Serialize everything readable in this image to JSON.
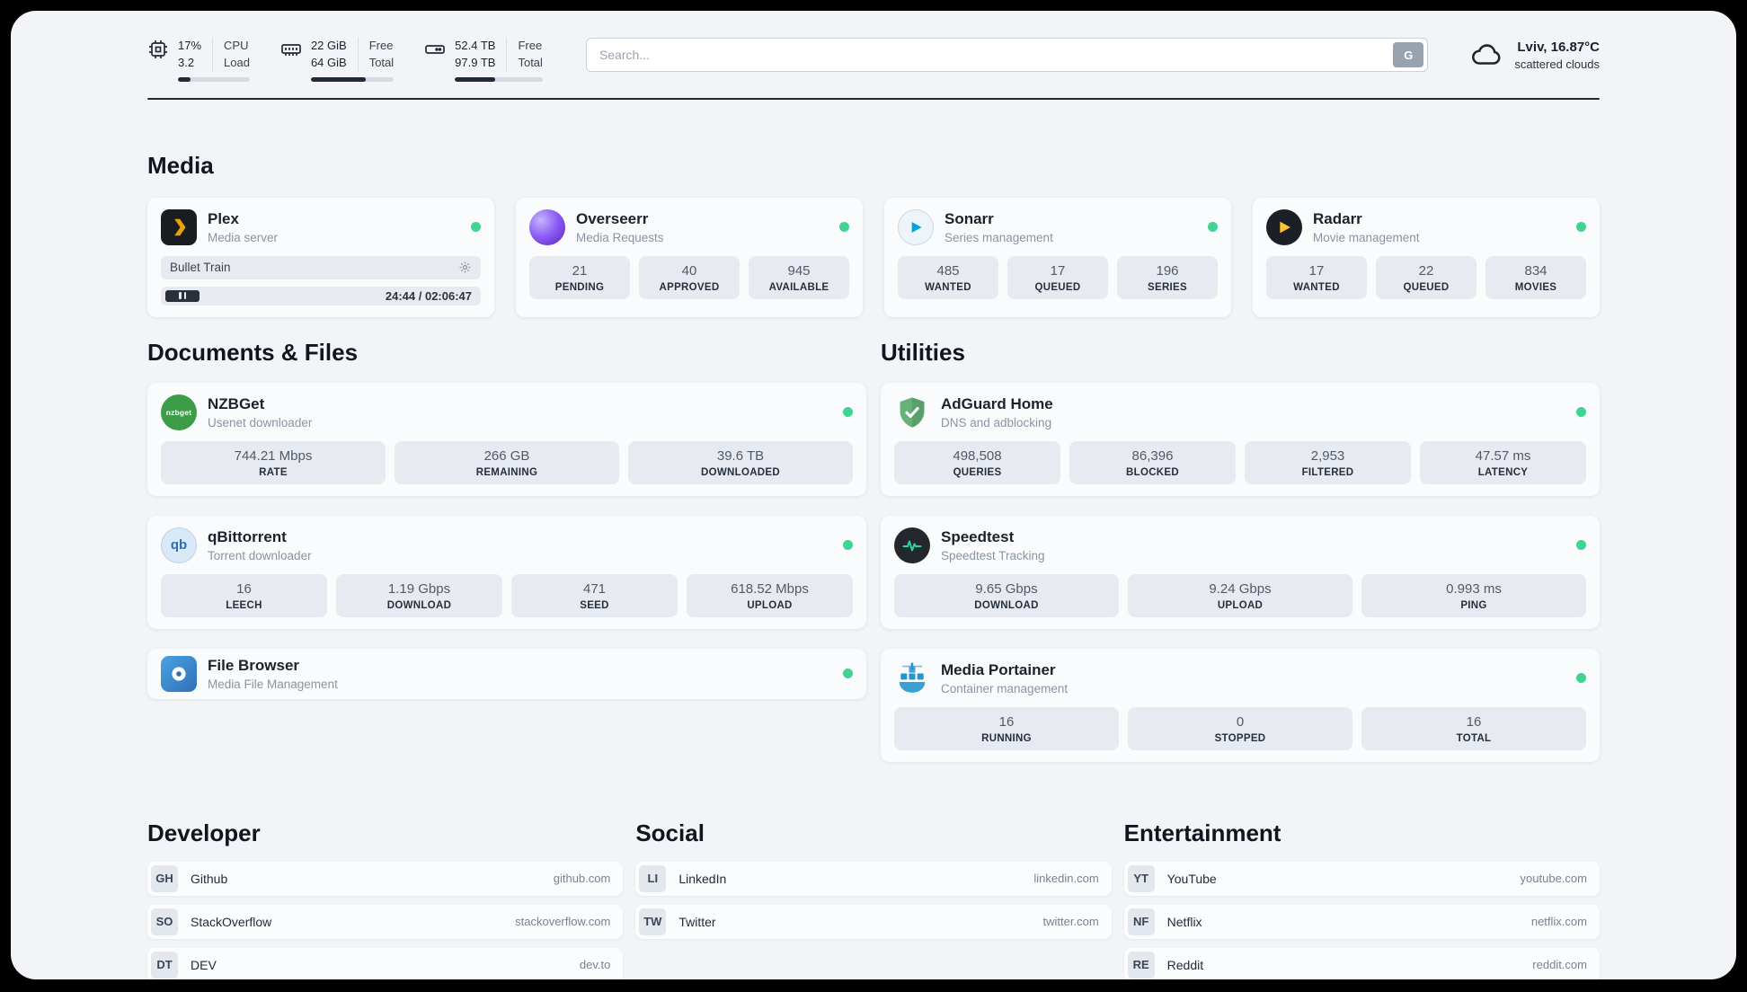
{
  "topbar": {
    "cpu": {
      "value_top": "17%",
      "value_bottom": "3.2",
      "label_top": "CPU",
      "label_bottom": "Load",
      "bar": 17
    },
    "ram": {
      "value_top": "22 GiB",
      "value_bottom": "64 GiB",
      "label_top": "Free",
      "label_bottom": "Total",
      "bar": 66
    },
    "disk": {
      "value_top": "52.4 TB",
      "value_bottom": "97.9 TB",
      "label_top": "Free",
      "label_bottom": "Total",
      "bar": 46
    },
    "search": {
      "placeholder": "Search...",
      "button": "G"
    },
    "weather": {
      "title": "Lviv, 16.87°C",
      "subtitle": "scattered clouds"
    }
  },
  "sections": {
    "media": "Media",
    "documents": "Documents & Files",
    "utilities": "Utilities",
    "developer": "Developer",
    "social": "Social",
    "entertainment": "Entertainment"
  },
  "apps": {
    "plex": {
      "name": "Plex",
      "subtitle": "Media server",
      "now_playing": "Bullet Train",
      "time": "24:44 / 02:06:47"
    },
    "overseerr": {
      "name": "Overseerr",
      "subtitle": "Media Requests",
      "stats": [
        {
          "value": "21",
          "label": "PENDING"
        },
        {
          "value": "40",
          "label": "APPROVED"
        },
        {
          "value": "945",
          "label": "AVAILABLE"
        }
      ]
    },
    "sonarr": {
      "name": "Sonarr",
      "subtitle": "Series management",
      "stats": [
        {
          "value": "485",
          "label": "WANTED"
        },
        {
          "value": "17",
          "label": "QUEUED"
        },
        {
          "value": "196",
          "label": "SERIES"
        }
      ]
    },
    "radarr": {
      "name": "Radarr",
      "subtitle": "Movie management",
      "stats": [
        {
          "value": "17",
          "label": "WANTED"
        },
        {
          "value": "22",
          "label": "QUEUED"
        },
        {
          "value": "834",
          "label": "MOVIES"
        }
      ]
    },
    "nzbget": {
      "name": "NZBGet",
      "subtitle": "Usenet downloader",
      "icon_text": "nzbget",
      "stats": [
        {
          "value": "744.21 Mbps",
          "label": "RATE"
        },
        {
          "value": "266 GB",
          "label": "REMAINING"
        },
        {
          "value": "39.6 TB",
          "label": "DOWNLOADED"
        }
      ]
    },
    "qbittorrent": {
      "name": "qBittorrent",
      "subtitle": "Torrent downloader",
      "icon_text": "qb",
      "stats": [
        {
          "value": "16",
          "label": "LEECH"
        },
        {
          "value": "1.19 Gbps",
          "label": "DOWNLOAD"
        },
        {
          "value": "471",
          "label": "SEED"
        },
        {
          "value": "618.52 Mbps",
          "label": "UPLOAD"
        }
      ]
    },
    "filebrowser": {
      "name": "File Browser",
      "subtitle": "Media File Management"
    },
    "adguard": {
      "name": "AdGuard Home",
      "subtitle": "DNS and adblocking",
      "stats": [
        {
          "value": "498,508",
          "label": "QUERIES"
        },
        {
          "value": "86,396",
          "label": "BLOCKED"
        },
        {
          "value": "2,953",
          "label": "FILTERED"
        },
        {
          "value": "47.57 ms",
          "label": "LATENCY"
        }
      ]
    },
    "speedtest": {
      "name": "Speedtest",
      "subtitle": "Speedtest Tracking",
      "stats": [
        {
          "value": "9.65 Gbps",
          "label": "DOWNLOAD"
        },
        {
          "value": "9.24 Gbps",
          "label": "UPLOAD"
        },
        {
          "value": "0.993 ms",
          "label": "PING"
        }
      ]
    },
    "portainer": {
      "name": "Media Portainer",
      "subtitle": "Container management",
      "stats": [
        {
          "value": "16",
          "label": "RUNNING"
        },
        {
          "value": "0",
          "label": "STOPPED"
        },
        {
          "value": "16",
          "label": "TOTAL"
        }
      ]
    }
  },
  "bookmarks": {
    "developer": [
      {
        "abbr": "GH",
        "name": "Github",
        "url": "github.com"
      },
      {
        "abbr": "SO",
        "name": "StackOverflow",
        "url": "stackoverflow.com"
      },
      {
        "abbr": "DT",
        "name": "DEV",
        "url": "dev.to"
      }
    ],
    "social": [
      {
        "abbr": "LI",
        "name": "LinkedIn",
        "url": "linkedin.com"
      },
      {
        "abbr": "TW",
        "name": "Twitter",
        "url": "twitter.com"
      }
    ],
    "entertainment": [
      {
        "abbr": "YT",
        "name": "YouTube",
        "url": "youtube.com"
      },
      {
        "abbr": "NF",
        "name": "Netflix",
        "url": "netflix.com"
      },
      {
        "abbr": "RE",
        "name": "Reddit",
        "url": "reddit.com"
      }
    ]
  },
  "icons": {
    "cpu": "chip-icon",
    "ram": "memory-icon",
    "disk": "hard-drive-icon",
    "weather": "cloud-icon",
    "gear": "gear-icon",
    "pause": "pause-icon",
    "status": "green-dot",
    "plex": "plex-chevron",
    "overseerr": "purple-circle",
    "sonarr": "blue-play-circle",
    "radarr": "yellow-play-dark-circle",
    "nzbget": "green-circle-wordmark",
    "adguard": "green-shield-check",
    "qbittorrent": "qb-circle",
    "speedtest": "ecg-dark-circle",
    "filebrowser": "blue-square-disk",
    "portainer": "container-crane"
  },
  "colors": {
    "accent_green": "#42d392",
    "panel_bg": "#f2f4f8",
    "dark": "#1c232e",
    "stat_bg": "#e7ebf1"
  }
}
